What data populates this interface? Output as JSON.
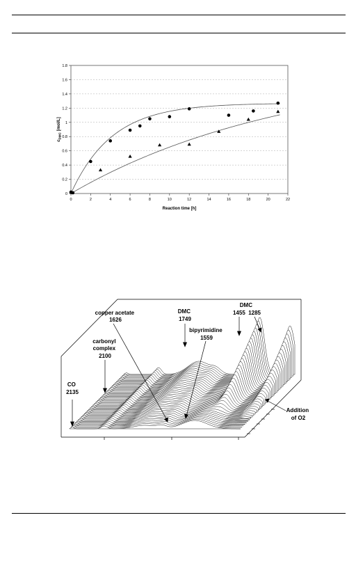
{
  "chart_data": {
    "type": "scatter",
    "xlabel": "Reaction time [h]",
    "ylabel_main": "c",
    "ylabel_sub": "DMC",
    "ylabel_unit": "[mol/L]",
    "xlim": [
      0,
      22
    ],
    "ylim": [
      0,
      1.8
    ],
    "xticks": [
      0,
      2,
      4,
      6,
      8,
      10,
      12,
      14,
      16,
      18,
      20,
      22
    ],
    "yticks": [
      0,
      0.2,
      0.4,
      0.6,
      0.8,
      1,
      1.2,
      1.4,
      1.6,
      1.8
    ],
    "grid": "horizontal-dashed",
    "series": [
      {
        "marker": "circle",
        "x": [
          0,
          0.2,
          2,
          4,
          6,
          7,
          8,
          10,
          12,
          16,
          18.5,
          21
        ],
        "y": [
          0.02,
          0.01,
          0.45,
          0.74,
          0.89,
          0.95,
          1.05,
          1.08,
          1.19,
          1.1,
          1.16,
          1.27
        ]
      },
      {
        "marker": "triangle",
        "x": [
          0.1,
          3,
          6,
          9,
          12,
          15,
          18,
          21
        ],
        "y": [
          0.01,
          0.33,
          0.52,
          0.68,
          0.69,
          0.87,
          1.04,
          1.15
        ]
      }
    ],
    "fits": [
      {
        "model": "saturation",
        "a": 1.27,
        "k": 0.24,
        "x_range": [
          0,
          21.2
        ]
      },
      {
        "model": "saturation",
        "a": 1.8,
        "k": 0.045,
        "x_range": [
          0,
          21.2
        ]
      }
    ]
  },
  "spectrum": {
    "labels": [
      {
        "id": "co",
        "lines": [
          "CO",
          "2135"
        ]
      },
      {
        "id": "carbonyl",
        "lines": [
          "carbonyl",
          "complex",
          "2100"
        ]
      },
      {
        "id": "copper",
        "lines": [
          "copper acetate",
          "1626"
        ]
      },
      {
        "id": "dmc1749",
        "lines": [
          "DMC",
          "1749"
        ]
      },
      {
        "id": "bipyrimidine",
        "lines": [
          "bipyrimidine",
          "1559"
        ]
      },
      {
        "id": "dmc2",
        "lines": [
          "DMC",
          "1455  1285"
        ]
      },
      {
        "id": "o2",
        "lines": [
          "Addition",
          "of O2"
        ]
      }
    ]
  }
}
